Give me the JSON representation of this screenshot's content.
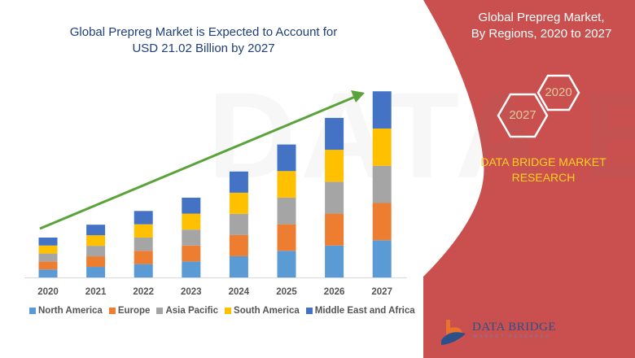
{
  "header": {
    "title_line1": "Global Prepreg Market is Expected to Account for",
    "title_line2": "USD 21.02 Billion by 2027"
  },
  "side_panel": {
    "title_line1": "Global Prepreg Market,",
    "title_line2": "By Regions, 2020 to 2027",
    "hex_start": "2020",
    "hex_end": "2027",
    "brand_line1": "DATA BRIDGE MARKET",
    "brand_line2": "RESEARCH",
    "logo_text": "DATA BRIDGE",
    "logo_subtext": "MARKET RESEARCH",
    "watermark_text": "DATA BRIDGE",
    "background_color": "#c9504e"
  },
  "chart_data": {
    "type": "bar",
    "stacked": true,
    "title": "Global Prepreg Market is Expected to Account for USD 21.02 Billion by 2027",
    "xlabel": "",
    "ylabel": "",
    "y_axis_shown": false,
    "grid": false,
    "legend_position": "bottom",
    "ylim": [
      0,
      21.02
    ],
    "categories": [
      "2020",
      "2021",
      "2022",
      "2023",
      "2024",
      "2025",
      "2026",
      "2027"
    ],
    "series": [
      {
        "name": "North America",
        "color": "#5b9bd5",
        "values": [
          0.9,
          1.19,
          1.5,
          1.8,
          2.39,
          3.0,
          3.6,
          4.2
        ]
      },
      {
        "name": "Europe",
        "color": "#ed7d31",
        "values": [
          0.9,
          1.19,
          1.5,
          1.8,
          2.39,
          3.0,
          3.6,
          4.2
        ]
      },
      {
        "name": "Asia Pacific",
        "color": "#a5a5a5",
        "values": [
          0.9,
          1.19,
          1.5,
          1.8,
          2.39,
          3.0,
          3.6,
          4.2
        ]
      },
      {
        "name": "South America",
        "color": "#ffc000",
        "values": [
          0.9,
          1.19,
          1.5,
          1.8,
          2.39,
          3.0,
          3.6,
          4.2
        ]
      },
      {
        "name": "Middle East and Africa",
        "color": "#4472c4",
        "values": [
          0.9,
          1.19,
          1.5,
          1.8,
          2.39,
          3.0,
          3.6,
          4.2
        ]
      }
    ],
    "trend_arrow_color": "#5aa33a"
  }
}
